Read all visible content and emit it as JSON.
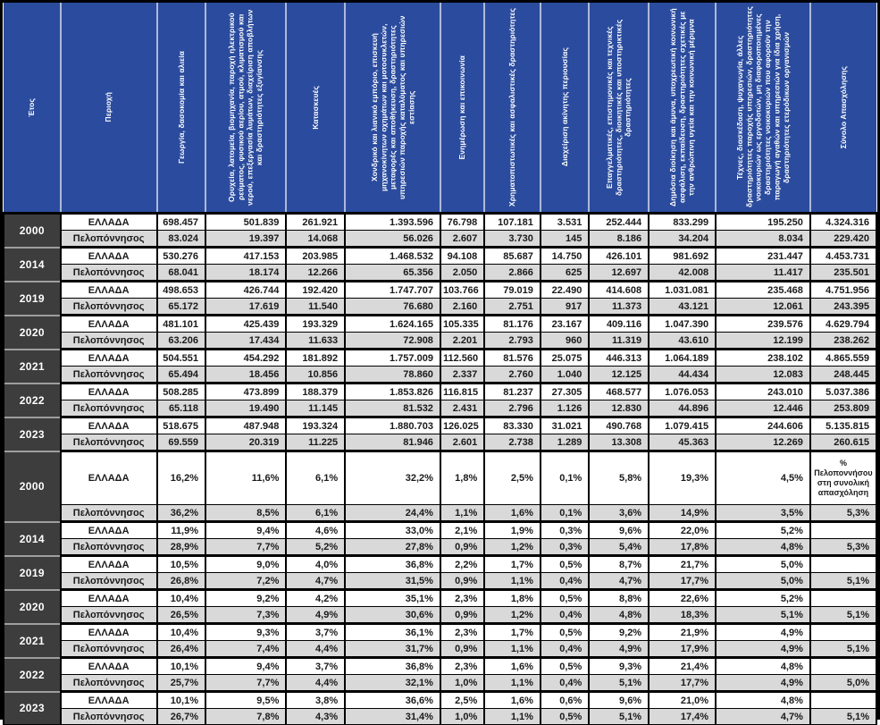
{
  "colors": {
    "header_bg": "#2b4c9e",
    "header_text": "#ffffff",
    "year_bg": "#3d3d3d",
    "year_text": "#ffffff",
    "alt_row_bg": "#d9d9d9",
    "row_bg": "#ffffff",
    "border": "#000000"
  },
  "chart_data": {
    "type": "table",
    "columns": [
      "Έτος",
      "Περιοχή",
      "Γεωργία, δασοκομία και αλιεία",
      "Ορυχεία, λατομεία, βιομηχανία, παροχή ηλεκτρικού ρεύματος, φυσικού αερίου, ατμού, κλιματισμού και νερού, επεξεργασία λυμάτων, διαχείριση αποβλήτων και δραστηριότητες εξυγίανσης",
      "Κατασκευές",
      "Χονδρικό και λιανικό εμπόριο, επισκευή μηχανοκίνητων οχημάτων και μοτοσυκλετών, μεταφορές και αποθήκευση, δραστηριότητες υπηρεσιών παροχής καταλύματος και υπηρεσιών εστίασης",
      "Ενημέρωση και επικοινωνία",
      "Χρηματοπιστωτικές και ασφαλιστικές δραστηριότητες",
      "Διαχείριση ακίνητης περιουσίας",
      "Επαγγελματικές, επιστημονικές και τεχνικές δραστηριότητες, διοικητικές και υποστηρικτικές δραστηριότητες",
      "Δημόσια διοίκηση και άμυνα, υποχρεωτική κοινωνική ασφάλιση, εκπαίδευση, δραστηριότητες σχετικές με την ανθρώπινη υγεία και την κοινωνική μέριμνα",
      "Τέχνες, διασκέδαση, ψυχαγωγία, άλλες δραστηριότητες παροχής υπηρεσιών, δραστηριότητες νοικοκυριών ως εργοδοτών, μη διαφοροποιημένες δραστηριότητες νοικοκυριών που αφορούν την παραγωγή αγαθών και υπηρεσιών για ίδια χρήση, δραστηριότητες ετερόδικων οργανισμών",
      "Σύνολο Απασχόλησης"
    ],
    "pct_note": "% Πελοποννήσου στη συνολική απασχόληση",
    "sections": [
      {
        "name": "absolute",
        "groups": [
          {
            "year": "2000",
            "rows": [
              {
                "region": "ΕΛΛΑΔΑ",
                "values": [
                  "698.457",
                  "501.839",
                  "261.921",
                  "1.393.596",
                  "76.798",
                  "107.181",
                  "3.531",
                  "252.444",
                  "833.299",
                  "195.250",
                  "4.324.316"
                ]
              },
              {
                "region": "Πελοπόννησος",
                "values": [
                  "83.024",
                  "19.397",
                  "14.068",
                  "56.026",
                  "2.607",
                  "3.730",
                  "145",
                  "8.186",
                  "34.204",
                  "8.034",
                  "229.420"
                ]
              }
            ]
          },
          {
            "year": "2014",
            "rows": [
              {
                "region": "ΕΛΛΑΔΑ",
                "values": [
                  "530.276",
                  "417.153",
                  "203.985",
                  "1.468.532",
                  "94.108",
                  "85.687",
                  "14.750",
                  "426.101",
                  "981.692",
                  "231.447",
                  "4.453.731"
                ]
              },
              {
                "region": "Πελοπόννησος",
                "values": [
                  "68.041",
                  "18.174",
                  "12.266",
                  "65.356",
                  "2.050",
                  "2.866",
                  "625",
                  "12.697",
                  "42.008",
                  "11.417",
                  "235.501"
                ]
              }
            ]
          },
          {
            "year": "2019",
            "rows": [
              {
                "region": "ΕΛΛΑΔΑ",
                "values": [
                  "498.653",
                  "426.744",
                  "192.420",
                  "1.747.707",
                  "103.766",
                  "79.019",
                  "22.490",
                  "414.608",
                  "1.031.081",
                  "235.468",
                  "4.751.956"
                ]
              },
              {
                "region": "Πελοπόννησος",
                "values": [
                  "65.172",
                  "17.619",
                  "11.540",
                  "76.680",
                  "2.160",
                  "2.751",
                  "917",
                  "11.373",
                  "43.121",
                  "12.061",
                  "243.395"
                ]
              }
            ]
          },
          {
            "year": "2020",
            "rows": [
              {
                "region": "ΕΛΛΑΔΑ",
                "values": [
                  "481.101",
                  "425.439",
                  "193.329",
                  "1.624.165",
                  "105.335",
                  "81.176",
                  "23.167",
                  "409.116",
                  "1.047.390",
                  "239.576",
                  "4.629.794"
                ]
              },
              {
                "region": "Πελοπόννησος",
                "values": [
                  "63.206",
                  "17.434",
                  "11.633",
                  "72.908",
                  "2.201",
                  "2.793",
                  "960",
                  "11.319",
                  "43.610",
                  "12.199",
                  "238.262"
                ]
              }
            ]
          },
          {
            "year": "2021",
            "rows": [
              {
                "region": "ΕΛΛΑΔΑ",
                "values": [
                  "504.551",
                  "454.292",
                  "181.892",
                  "1.757.009",
                  "112.560",
                  "81.576",
                  "25.075",
                  "446.313",
                  "1.064.189",
                  "238.102",
                  "4.865.559"
                ]
              },
              {
                "region": "Πελοπόννησος",
                "values": [
                  "65.494",
                  "18.456",
                  "10.856",
                  "78.860",
                  "2.337",
                  "2.760",
                  "1.040",
                  "12.125",
                  "44.434",
                  "12.083",
                  "248.445"
                ]
              }
            ]
          },
          {
            "year": "2022",
            "rows": [
              {
                "region": "ΕΛΛΑΔΑ",
                "values": [
                  "508.285",
                  "473.899",
                  "188.379",
                  "1.853.826",
                  "116.815",
                  "81.237",
                  "27.305",
                  "468.577",
                  "1.076.053",
                  "243.010",
                  "5.037.386"
                ]
              },
              {
                "region": "Πελοπόννησος",
                "values": [
                  "65.118",
                  "19.490",
                  "11.145",
                  "81.532",
                  "2.431",
                  "2.796",
                  "1.126",
                  "12.830",
                  "44.896",
                  "12.446",
                  "253.809"
                ]
              }
            ]
          },
          {
            "year": "2023",
            "rows": [
              {
                "region": "ΕΛΛΑΔΑ",
                "values": [
                  "518.675",
                  "487.948",
                  "193.324",
                  "1.880.703",
                  "126.025",
                  "83.330",
                  "31.021",
                  "490.768",
                  "1.079.415",
                  "244.606",
                  "5.135.815"
                ]
              },
              {
                "region": "Πελοπόννησος",
                "values": [
                  "69.559",
                  "20.319",
                  "11.225",
                  "81.946",
                  "2.601",
                  "2.738",
                  "1.289",
                  "13.308",
                  "45.363",
                  "12.269",
                  "260.615"
                ]
              }
            ]
          }
        ]
      },
      {
        "name": "percent",
        "groups": [
          {
            "year": "2000",
            "rows": [
              {
                "region": "ΕΛΛΑΔΑ",
                "tall": true,
                "note_cell": true,
                "values": [
                  "16,2%",
                  "11,6%",
                  "6,1%",
                  "32,2%",
                  "1,8%",
                  "2,5%",
                  "0,1%",
                  "5,8%",
                  "19,3%",
                  "4,5%"
                ]
              },
              {
                "region": "Πελοπόννησος",
                "values": [
                  "36,2%",
                  "8,5%",
                  "6,1%",
                  "24,4%",
                  "1,1%",
                  "1,6%",
                  "0,1%",
                  "3,6%",
                  "14,9%",
                  "3,5%",
                  "5,3%"
                ]
              }
            ]
          },
          {
            "year": "2014",
            "rows": [
              {
                "region": "ΕΛΛΑΔΑ",
                "values": [
                  "11,9%",
                  "9,4%",
                  "4,6%",
                  "33,0%",
                  "2,1%",
                  "1,9%",
                  "0,3%",
                  "9,6%",
                  "22,0%",
                  "5,2%",
                  ""
                ]
              },
              {
                "region": "Πελοπόννησος",
                "values": [
                  "28,9%",
                  "7,7%",
                  "5,2%",
                  "27,8%",
                  "0,9%",
                  "1,2%",
                  "0,3%",
                  "5,4%",
                  "17,8%",
                  "4,8%",
                  "5,3%"
                ]
              }
            ]
          },
          {
            "year": "2019",
            "rows": [
              {
                "region": "ΕΛΛΑΔΑ",
                "values": [
                  "10,5%",
                  "9,0%",
                  "4,0%",
                  "36,8%",
                  "2,2%",
                  "1,7%",
                  "0,5%",
                  "8,7%",
                  "21,7%",
                  "5,0%",
                  ""
                ]
              },
              {
                "region": "Πελοπόννησος",
                "values": [
                  "26,8%",
                  "7,2%",
                  "4,7%",
                  "31,5%",
                  "0,9%",
                  "1,1%",
                  "0,4%",
                  "4,7%",
                  "17,7%",
                  "5,0%",
                  "5,1%"
                ]
              }
            ]
          },
          {
            "year": "2020",
            "rows": [
              {
                "region": "ΕΛΛΑΔΑ",
                "values": [
                  "10,4%",
                  "9,2%",
                  "4,2%",
                  "35,1%",
                  "2,3%",
                  "1,8%",
                  "0,5%",
                  "8,8%",
                  "22,6%",
                  "5,2%",
                  ""
                ]
              },
              {
                "region": "Πελοπόννησος",
                "values": [
                  "26,5%",
                  "7,3%",
                  "4,9%",
                  "30,6%",
                  "0,9%",
                  "1,2%",
                  "0,4%",
                  "4,8%",
                  "18,3%",
                  "5,1%",
                  "5,1%"
                ]
              }
            ]
          },
          {
            "year": "2021",
            "rows": [
              {
                "region": "ΕΛΛΑΔΑ",
                "values": [
                  "10,4%",
                  "9,3%",
                  "3,7%",
                  "36,1%",
                  "2,3%",
                  "1,7%",
                  "0,5%",
                  "9,2%",
                  "21,9%",
                  "4,9%",
                  ""
                ]
              },
              {
                "region": "Πελοπόννησος",
                "values": [
                  "26,4%",
                  "7,4%",
                  "4,4%",
                  "31,7%",
                  "0,9%",
                  "1,1%",
                  "0,4%",
                  "4,9%",
                  "17,9%",
                  "4,9%",
                  "5,1%"
                ]
              }
            ]
          },
          {
            "year": "2022",
            "rows": [
              {
                "region": "ΕΛΛΑΔΑ",
                "values": [
                  "10,1%",
                  "9,4%",
                  "3,7%",
                  "36,8%",
                  "2,3%",
                  "1,6%",
                  "0,5%",
                  "9,3%",
                  "21,4%",
                  "4,8%",
                  ""
                ]
              },
              {
                "region": "Πελοπόννησος",
                "values": [
                  "25,7%",
                  "7,7%",
                  "4,4%",
                  "32,1%",
                  "1,0%",
                  "1,1%",
                  "0,4%",
                  "5,1%",
                  "17,7%",
                  "4,9%",
                  "5,0%"
                ]
              }
            ]
          },
          {
            "year": "2023",
            "rows": [
              {
                "region": "ΕΛΛΑΔΑ",
                "values": [
                  "10,1%",
                  "9,5%",
                  "3,8%",
                  "36,6%",
                  "2,5%",
                  "1,6%",
                  "0,6%",
                  "9,6%",
                  "21,0%",
                  "4,8%",
                  ""
                ]
              },
              {
                "region": "Πελοπόννησος",
                "values": [
                  "26,7%",
                  "7,8%",
                  "4,3%",
                  "31,4%",
                  "1,0%",
                  "1,1%",
                  "0,5%",
                  "5,1%",
                  "17,4%",
                  "4,7%",
                  "5,1%"
                ]
              }
            ]
          }
        ]
      }
    ]
  }
}
